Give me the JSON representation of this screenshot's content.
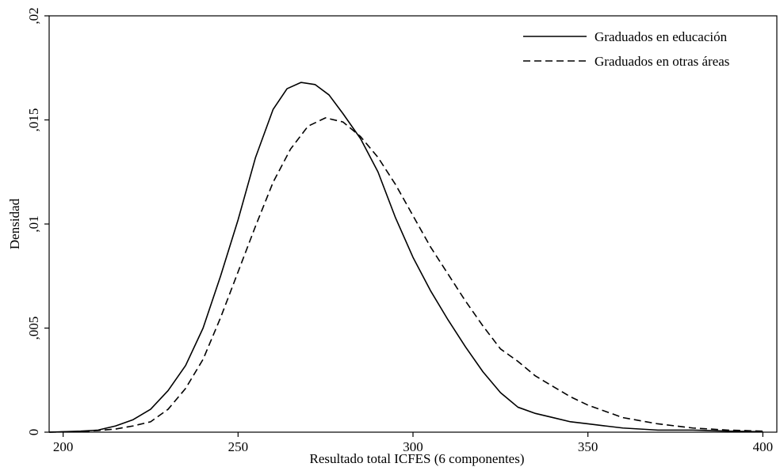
{
  "chart_data": {
    "type": "line",
    "title": "",
    "xlabel": "Resultado total ICFES (6 componentes)",
    "ylabel": "Densidad",
    "xlim": [
      196,
      404
    ],
    "ylim": [
      0,
      0.02
    ],
    "x_ticks": [
      200,
      250,
      300,
      350,
      400
    ],
    "y_ticks": [
      0,
      0.005,
      0.01,
      0.015,
      0.02
    ],
    "x_tick_labels": [
      "200",
      "250",
      "300",
      "350",
      "400"
    ],
    "y_tick_labels": [
      "0",
      ",005",
      ",01",
      ",015",
      ",02"
    ],
    "grid": false,
    "legend_position": "top-right",
    "series": [
      {
        "name": "Graduados en educación",
        "style": "solid",
        "color": "#000000",
        "points": [
          [
            196,
            0.0
          ],
          [
            205,
            5e-05
          ],
          [
            210,
            0.0001
          ],
          [
            215,
            0.0003
          ],
          [
            220,
            0.0006
          ],
          [
            225,
            0.0011
          ],
          [
            230,
            0.002
          ],
          [
            235,
            0.0032
          ],
          [
            240,
            0.005
          ],
          [
            245,
            0.0075
          ],
          [
            250,
            0.0102
          ],
          [
            255,
            0.0132
          ],
          [
            260,
            0.0155
          ],
          [
            264,
            0.0165
          ],
          [
            268,
            0.0168
          ],
          [
            272,
            0.0167
          ],
          [
            276,
            0.0162
          ],
          [
            280,
            0.0153
          ],
          [
            285,
            0.0141
          ],
          [
            290,
            0.0125
          ],
          [
            295,
            0.0103
          ],
          [
            300,
            0.0084
          ],
          [
            305,
            0.0068
          ],
          [
            310,
            0.0054
          ],
          [
            315,
            0.0041
          ],
          [
            320,
            0.0029
          ],
          [
            325,
            0.0019
          ],
          [
            330,
            0.0012
          ],
          [
            335,
            0.0009
          ],
          [
            340,
            0.0007
          ],
          [
            345,
            0.0005
          ],
          [
            350,
            0.0004
          ],
          [
            355,
            0.0003
          ],
          [
            360,
            0.0002
          ],
          [
            370,
            0.0001
          ],
          [
            380,
            0.0001
          ],
          [
            390,
            5e-05
          ],
          [
            400,
            2e-05
          ]
        ]
      },
      {
        "name": "Graduados en otras áreas",
        "style": "dashed",
        "color": "#000000",
        "points": [
          [
            196,
            0.0
          ],
          [
            205,
            3e-05
          ],
          [
            210,
            8e-05
          ],
          [
            215,
            0.00015
          ],
          [
            220,
            0.0003
          ],
          [
            225,
            0.0005
          ],
          [
            230,
            0.0011
          ],
          [
            235,
            0.0021
          ],
          [
            240,
            0.0035
          ],
          [
            245,
            0.0055
          ],
          [
            250,
            0.0077
          ],
          [
            255,
            0.0099
          ],
          [
            260,
            0.012
          ],
          [
            265,
            0.0136
          ],
          [
            270,
            0.0147
          ],
          [
            275,
            0.0151
          ],
          [
            280,
            0.0149
          ],
          [
            285,
            0.0142
          ],
          [
            290,
            0.0132
          ],
          [
            295,
            0.0119
          ],
          [
            300,
            0.0104
          ],
          [
            305,
            0.0089
          ],
          [
            310,
            0.0076
          ],
          [
            315,
            0.0063
          ],
          [
            320,
            0.0051
          ],
          [
            325,
            0.004
          ],
          [
            330,
            0.0034
          ],
          [
            335,
            0.0027
          ],
          [
            340,
            0.0022
          ],
          [
            345,
            0.0017
          ],
          [
            350,
            0.0013
          ],
          [
            355,
            0.001
          ],
          [
            360,
            0.0007
          ],
          [
            370,
            0.0004
          ],
          [
            380,
            0.0002
          ],
          [
            390,
            0.0001
          ],
          [
            400,
            5e-05
          ]
        ]
      }
    ]
  }
}
